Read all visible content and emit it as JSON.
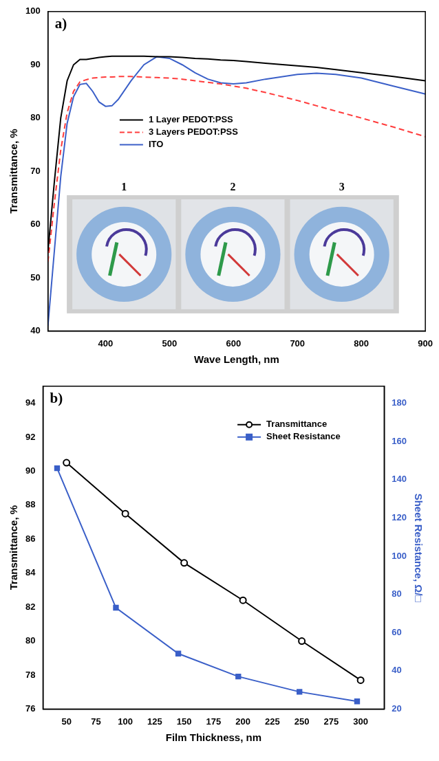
{
  "chart_data": [
    {
      "type": "line",
      "title": "a)",
      "x_label": "Wave Length, nm",
      "y_label": "Transmittance, %",
      "x": [
        310,
        320,
        330,
        340,
        350,
        360,
        370,
        380,
        390,
        400,
        410,
        420,
        440,
        460,
        480,
        500,
        520,
        540,
        560,
        580,
        600,
        620,
        650,
        700,
        730,
        760,
        800,
        850,
        900
      ],
      "series": [
        {
          "name": "1 Layer PEDOT:PSS",
          "color": "#000000",
          "line_style": "solid",
          "values": [
            55,
            68,
            80,
            87,
            90,
            91,
            91,
            91.2,
            91.4,
            91.5,
            91.6,
            91.6,
            91.6,
            91.6,
            91.5,
            91.5,
            91.4,
            91.2,
            91.1,
            90.9,
            90.8,
            90.6,
            90.3,
            89.8,
            89.5,
            89.1,
            88.5,
            87.8,
            87
          ]
        },
        {
          "name": "3 Layers PEDOT:PSS",
          "color": "#ff3b3b",
          "line_style": "dashed",
          "values": [
            53,
            64,
            74,
            81,
            85,
            86.8,
            87.2,
            87.5,
            87.6,
            87.7,
            87.7,
            87.8,
            87.8,
            87.7,
            87.6,
            87.5,
            87.3,
            87,
            86.7,
            86.4,
            86,
            85.6,
            84.8,
            83.3,
            82.3,
            81.3,
            80,
            78.3,
            76.5
          ]
        },
        {
          "name": "ITO",
          "color": "#3a5fc8",
          "line_style": "solid",
          "values": [
            41,
            55,
            69,
            79,
            84,
            86.3,
            86.5,
            85,
            83,
            82.2,
            82.3,
            83.5,
            87,
            90,
            91.5,
            91.2,
            90,
            88.5,
            87.3,
            86.6,
            86.4,
            86.6,
            87.3,
            88.2,
            88.4,
            88.2,
            87.5,
            86,
            84.5
          ]
        }
      ],
      "xlim": [
        310,
        900
      ],
      "xticks": [
        400,
        500,
        600,
        700,
        800,
        900
      ],
      "ylim": [
        40,
        100
      ],
      "yticks": [
        40,
        50,
        60,
        70,
        80,
        90,
        100
      ],
      "grid": false,
      "legend": "center",
      "annotations": [
        "1",
        "2",
        "3"
      ]
    },
    {
      "type": "line",
      "title": "b)",
      "x_label": "Film Thickness, nm",
      "y_label": "Transmittance, %",
      "y2_label": "Sheet Resistance, Ω/□",
      "series": [
        {
          "name": "Transmittance",
          "color": "#000000",
          "marker": "open_circle",
          "line_style": "solid",
          "x": [
            50,
            100,
            150,
            200,
            250,
            300
          ],
          "values": [
            90.5,
            87.5,
            84.6,
            82.4,
            80,
            77.7
          ]
        },
        {
          "name": "Sheet Resistance",
          "color": "#3a5fc8",
          "marker": "square",
          "line_style": "solid",
          "axis": "y2",
          "x": [
            42,
            92,
            145,
            196,
            248,
            297
          ],
          "values": [
            146,
            73,
            49,
            37,
            29,
            24
          ]
        }
      ],
      "xlim": [
        30,
        320
      ],
      "xticks": [
        50,
        75,
        100,
        125,
        150,
        175,
        200,
        225,
        250,
        275,
        300
      ],
      "ylim": [
        76,
        95
      ],
      "yticks": [
        76,
        78,
        80,
        82,
        84,
        86,
        88,
        90,
        92,
        94
      ],
      "y2lim": [
        20,
        188.9
      ],
      "y2ticks": [
        20,
        40,
        60,
        80,
        100,
        120,
        140,
        160,
        180
      ],
      "grid": false,
      "legend": "top-right"
    }
  ]
}
